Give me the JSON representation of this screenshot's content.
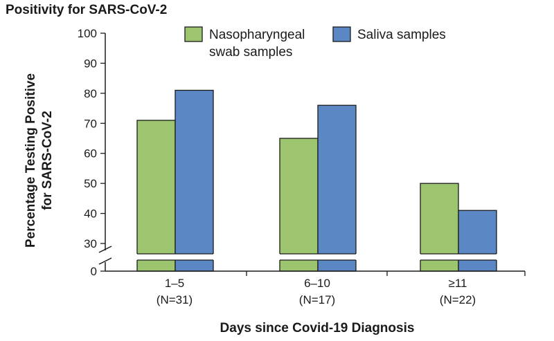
{
  "chart_data": {
    "type": "bar",
    "title": "Positivity for SARS-CoV-2",
    "xlabel": "Days since Covid-19 Diagnosis",
    "ylabel": [
      "Percentage Testing Positive",
      "for SARS-CoV-2"
    ],
    "categories": [
      {
        "label": "1–5",
        "n": "(N=31)"
      },
      {
        "label": "6–10",
        "n": "(N=17)"
      },
      {
        "label": "≥11",
        "n": "(N=22)"
      }
    ],
    "series": [
      {
        "name": [
          "Nasopharyngeal",
          "swab samples"
        ],
        "values": [
          71,
          65,
          50
        ],
        "color": "#9dc56f"
      },
      {
        "name": [
          "Saliva samples"
        ],
        "values": [
          81,
          76,
          41
        ],
        "color": "#5b87c5"
      }
    ],
    "yticks": [
      "0",
      "30",
      "40",
      "50",
      "60",
      "70",
      "80",
      "90",
      "100"
    ],
    "ylim": [
      0,
      100
    ],
    "axis_break": [
      0,
      30
    ],
    "legend_position": "top",
    "grid": false
  }
}
